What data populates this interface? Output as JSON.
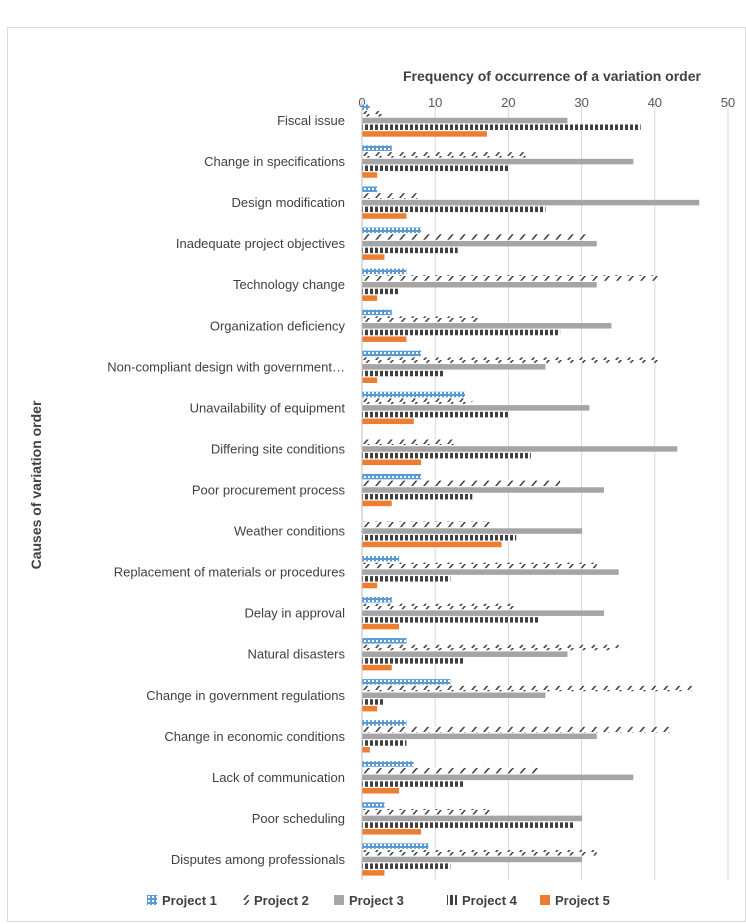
{
  "chart_data": {
    "type": "bar",
    "orientation": "horizontal",
    "xlabel": "Frequency of occurrence of a variation order",
    "ylabel": "Causes of variation order",
    "xlim": [
      0,
      50
    ],
    "xticks": [
      "0",
      "10",
      "20",
      "30",
      "40",
      "50"
    ],
    "x_axis_position": "top",
    "grid": true,
    "legend_position": "bottom",
    "categories": [
      "Fiscal issue",
      "Change in specifications",
      "Design modification",
      "Inadequate project objectives",
      "Technology change",
      "Organization deficiency",
      "Non-compliant design with government…",
      "Unavailability of equipment",
      "Differing site conditions",
      "Poor procurement process",
      "Weather conditions",
      "Replacement of materials or procedures",
      "Delay in approval",
      "Natural disasters",
      "Change in government regulations",
      "Change in economic conditions",
      "Lack of communication",
      "Poor scheduling",
      "Disputes among professionals"
    ],
    "series": [
      {
        "name": "Project 1",
        "color": "#5b9bd5",
        "pattern": "dotted",
        "values": [
          1,
          4,
          2,
          8,
          6,
          4,
          8,
          14,
          0,
          8,
          0,
          5,
          4,
          6,
          12,
          6,
          7,
          3,
          9
        ]
      },
      {
        "name": "Project 2",
        "color": "#404040",
        "pattern": "diagonal",
        "values": [
          3,
          23,
          8,
          31,
          41,
          16,
          41,
          15,
          13,
          27,
          18,
          32,
          21,
          35,
          45,
          42,
          24,
          18,
          32
        ]
      },
      {
        "name": "Project 3",
        "color": "#a5a5a5",
        "pattern": "solid",
        "values": [
          28,
          37,
          46,
          32,
          32,
          34,
          25,
          31,
          43,
          33,
          30,
          35,
          33,
          28,
          25,
          32,
          37,
          30,
          30
        ]
      },
      {
        "name": "Project 4",
        "color": "#404040",
        "pattern": "vertical",
        "values": [
          38,
          20,
          25,
          13,
          5,
          27,
          11,
          20,
          23,
          15,
          21,
          12,
          24,
          14,
          3,
          6,
          14,
          29,
          12
        ]
      },
      {
        "name": "Project 5",
        "color": "#ed7d31",
        "pattern": "solid",
        "values": [
          17,
          2,
          6,
          3,
          2,
          6,
          2,
          7,
          8,
          4,
          19,
          2,
          5,
          4,
          2,
          1,
          5,
          8,
          3
        ]
      }
    ]
  }
}
